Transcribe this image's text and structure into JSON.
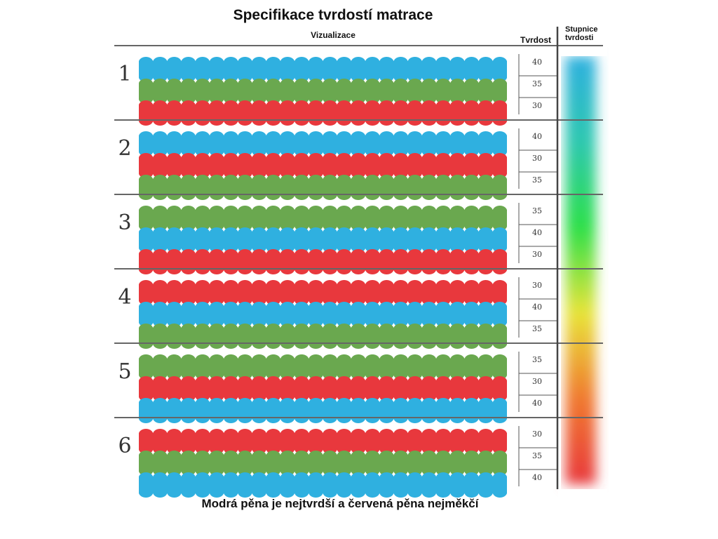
{
  "title": "Specifikace tvrdostí matrace",
  "headers": {
    "visualization": "Vizualizace",
    "hardness": "Tvrdost",
    "scale_line1": "Stupnice",
    "scale_line2": "tvrdosti"
  },
  "foam_colors": {
    "40": "#2fb0e0",
    "35": "#6aa84f",
    "30": "#e8383d"
  },
  "rows": [
    {
      "number": "1",
      "layers": [
        "40",
        "35",
        "30"
      ]
    },
    {
      "number": "2",
      "layers": [
        "40",
        "30",
        "35"
      ]
    },
    {
      "number": "3",
      "layers": [
        "35",
        "40",
        "30"
      ]
    },
    {
      "number": "4",
      "layers": [
        "30",
        "40",
        "35"
      ]
    },
    {
      "number": "5",
      "layers": [
        "35",
        "30",
        "40"
      ]
    },
    {
      "number": "6",
      "layers": [
        "30",
        "35",
        "40"
      ]
    }
  ],
  "scale_colors": [
    "#2fb0e0",
    "#2fc8b0",
    "#2ee04a",
    "#e8e43a",
    "#f07a30",
    "#e8383d"
  ],
  "note": "Modrá pěna je nejtvrdší a červená pěna nejměkčí"
}
